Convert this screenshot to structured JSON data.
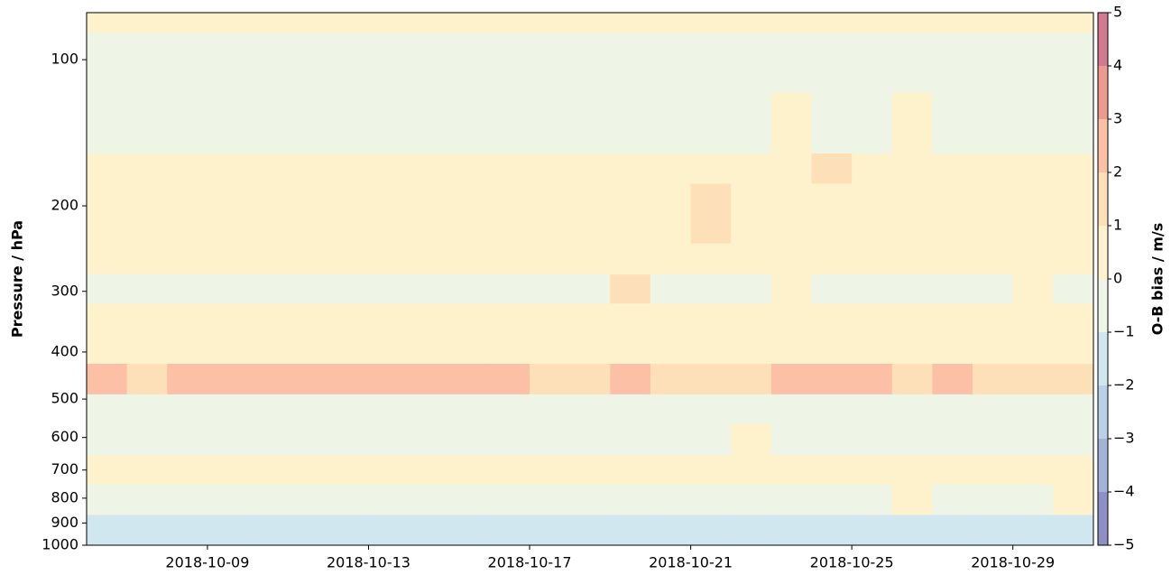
{
  "chart_data": {
    "type": "heatmap",
    "ylabel": "Pressure / hPa",
    "colorbar_label": "O-B bias / m/s",
    "x": [
      "2018-10-06",
      "2018-10-07",
      "2018-10-08",
      "2018-10-09",
      "2018-10-10",
      "2018-10-11",
      "2018-10-12",
      "2018-10-13",
      "2018-10-14",
      "2018-10-15",
      "2018-10-16",
      "2018-10-17",
      "2018-10-18",
      "2018-10-19",
      "2018-10-20",
      "2018-10-21",
      "2018-10-22",
      "2018-10-23",
      "2018-10-24",
      "2018-10-25",
      "2018-10-26",
      "2018-10-27",
      "2018-10-28",
      "2018-10-29",
      "2018-10-30"
    ],
    "xlim": [
      "2018-10-06",
      "2018-10-31"
    ],
    "xticks": [
      "2018-10-09",
      "2018-10-13",
      "2018-10-17",
      "2018-10-21",
      "2018-10-25",
      "2018-10-29"
    ],
    "y_edges": [
      80,
      88,
      117,
      156,
      180,
      239,
      277,
      318,
      367,
      423,
      489,
      563,
      653,
      750,
      866,
      1000
    ],
    "ylim": [
      1000,
      80
    ],
    "yscale": "log",
    "yticks": [
      100,
      200,
      300,
      400,
      500,
      600,
      700,
      800,
      900,
      1000
    ],
    "values": [
      [
        0.4,
        0.5,
        0.3,
        0.4,
        0.5,
        0.3,
        0.4,
        0.4,
        0.5,
        0.3,
        0.4,
        0.5,
        0.4,
        0.3,
        0.5,
        0.4,
        0.4,
        0.3,
        0.5,
        0.4,
        0.3,
        0.4,
        0.5,
        0.4,
        0.4
      ],
      [
        -0.3,
        -0.4,
        -0.5,
        -0.3,
        -0.6,
        -0.4,
        -0.3,
        -0.5,
        -0.4,
        -0.3,
        -0.4,
        -0.2,
        -0.3,
        -0.5,
        -0.3,
        -0.2,
        -0.3,
        -0.4,
        -0.2,
        -0.3,
        -0.2,
        -0.3,
        -0.2,
        -0.3,
        -0.2
      ],
      [
        -0.2,
        -0.3,
        -0.4,
        -0.2,
        -0.5,
        -0.3,
        -0.2,
        -0.4,
        -0.3,
        -0.2,
        -0.1,
        -0.2,
        -0.3,
        -0.1,
        -0.2,
        -0.3,
        -0.2,
        0.2,
        -0.1,
        -0.2,
        0.1,
        -0.2,
        -0.1,
        -0.2,
        -0.1
      ],
      [
        0.6,
        0.7,
        0.5,
        0.6,
        0.7,
        0.6,
        0.5,
        0.7,
        0.6,
        0.6,
        0.7,
        0.5,
        0.6,
        0.7,
        0.6,
        0.8,
        0.7,
        0.6,
        1.1,
        0.7,
        0.6,
        0.7,
        0.8,
        0.6,
        0.7
      ],
      [
        0.6,
        0.5,
        0.7,
        0.6,
        0.5,
        0.7,
        0.6,
        0.8,
        0.6,
        0.7,
        0.6,
        0.7,
        0.6,
        0.5,
        0.7,
        1.1,
        0.8,
        0.7,
        0.6,
        0.7,
        0.8,
        0.6,
        0.7,
        0.6,
        0.7
      ],
      [
        0.5,
        0.6,
        0.5,
        0.7,
        0.6,
        0.5,
        0.6,
        0.7,
        0.6,
        0.5,
        0.6,
        0.7,
        0.8,
        0.6,
        0.7,
        0.8,
        0.6,
        0.7,
        0.6,
        0.7,
        0.6,
        0.8,
        0.7,
        0.6,
        0.7
      ],
      [
        -0.2,
        -0.3,
        -0.4,
        -0.3,
        -0.5,
        -0.4,
        -0.3,
        -0.4,
        -0.5,
        -0.3,
        -0.4,
        -0.3,
        -0.2,
        1.2,
        -0.3,
        -0.2,
        -0.3,
        0.6,
        -0.2,
        -0.3,
        -0.2,
        -0.3,
        -0.2,
        0.6,
        -0.2
      ],
      [
        0.6,
        0.7,
        0.6,
        0.5,
        0.6,
        0.7,
        0.6,
        0.8,
        0.6,
        0.7,
        0.6,
        0.7,
        0.6,
        0.7,
        0.8,
        0.6,
        0.7,
        0.6,
        0.7,
        0.8,
        0.6,
        0.7,
        0.6,
        0.8,
        0.7
      ],
      [
        0.5,
        0.7,
        0.6,
        0.8,
        0.6,
        0.7,
        0.6,
        0.7,
        0.8,
        0.6,
        0.7,
        0.6,
        0.5,
        0.6,
        0.7,
        0.6,
        0.8,
        0.7,
        0.6,
        0.7,
        0.6,
        0.7,
        0.8,
        0.6,
        0.7
      ],
      [
        2.4,
        1.8,
        2.5,
        2.2,
        2.3,
        2.8,
        2.9,
        2.6,
        2.7,
        2.5,
        2.0,
        1.6,
        1.5,
        2.8,
        1.3,
        1.4,
        1.8,
        2.1,
        2.7,
        2.4,
        1.9,
        2.0,
        1.7,
        1.9,
        1.8
      ],
      [
        -0.3,
        -0.5,
        -0.4,
        -0.3,
        -0.2,
        -0.4,
        -0.3,
        -0.5,
        -0.3,
        -0.2,
        -0.3,
        -0.4,
        -0.2,
        -0.3,
        -0.2,
        -0.3,
        -0.2,
        -0.3,
        -0.4,
        -0.2,
        -0.3,
        -0.2,
        -0.3,
        -0.2,
        -0.3
      ],
      [
        -0.2,
        -0.4,
        -0.3,
        -0.2,
        -0.3,
        -0.4,
        -0.2,
        -0.3,
        -0.2,
        -0.4,
        -0.2,
        -0.3,
        -0.2,
        -0.1,
        -0.2,
        -0.3,
        0.3,
        -0.2,
        -0.1,
        -0.2,
        -0.3,
        -0.2,
        -0.1,
        -0.2,
        -0.1
      ],
      [
        0.6,
        0.5,
        0.7,
        0.6,
        0.5,
        0.6,
        0.7,
        0.5,
        0.6,
        0.7,
        0.6,
        0.5,
        0.6,
        0.7,
        0.6,
        0.8,
        0.6,
        0.7,
        0.6,
        0.5,
        0.6,
        0.7,
        0.6,
        0.5,
        0.6
      ],
      [
        -0.2,
        -0.3,
        -0.2,
        -0.4,
        -0.3,
        -0.2,
        -0.3,
        -0.2,
        -0.4,
        -0.3,
        -0.2,
        -0.3,
        -0.2,
        -0.3,
        -0.2,
        -0.3,
        -0.2,
        -0.3,
        -0.2,
        -0.3,
        0.3,
        -0.2,
        -0.3,
        -0.2,
        0.4
      ],
      [
        -1.3,
        -1.2,
        -1.6,
        -1.4,
        -1.3,
        -1.5,
        -1.2,
        -1.7,
        -1.4,
        -1.3,
        -1.6,
        -1.2,
        -1.4,
        -1.8,
        -1.3,
        -1.2,
        -1.4,
        -1.3,
        -1.2,
        -1.4,
        -1.3,
        -1.2,
        -1.3,
        -1.4,
        -1.2
      ]
    ],
    "colorbar_ticks": [
      {
        "value": -5,
        "label": "−5"
      },
      {
        "value": -4,
        "label": "−4"
      },
      {
        "value": -3,
        "label": "−3"
      },
      {
        "value": -2,
        "label": "−2"
      },
      {
        "value": -1,
        "label": "−1"
      },
      0,
      1,
      2,
      3,
      4,
      5
    ],
    "colors": [
      "#8e8fc4",
      "#a2b3d6",
      "#b8d1e6",
      "#d1e7f0",
      "#eef5e6",
      "#fdf2cc",
      "#fde0b8",
      "#fbc0a6",
      "#ec9a8e",
      "#d27a92"
    ]
  }
}
